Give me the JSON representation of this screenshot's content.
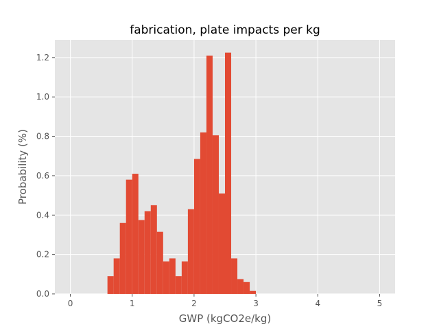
{
  "chart_data": {
    "type": "bar",
    "title": "fabrication, plate impacts per kg",
    "xlabel": "GWP (kgCO2e/kg)",
    "ylabel": "Probability (%)",
    "xlim": [
      -0.25,
      5.25
    ],
    "ylim": [
      0.0,
      1.29
    ],
    "xticks": [
      0,
      1,
      2,
      3,
      4,
      5
    ],
    "xtick_labels": [
      "0",
      "1",
      "2",
      "3",
      "4",
      "5"
    ],
    "yticks": [
      0.0,
      0.2,
      0.4,
      0.6,
      0.8,
      1.0,
      1.2
    ],
    "ytick_labels": [
      "0.0",
      "0.2",
      "0.4",
      "0.6",
      "0.8",
      "1.0",
      "1.2"
    ],
    "grid": true,
    "bin_width": 0.1,
    "bins": [
      {
        "x0": 0.6,
        "x1": 0.7,
        "value": 0.09
      },
      {
        "x0": 0.7,
        "x1": 0.8,
        "value": 0.18
      },
      {
        "x0": 0.8,
        "x1": 0.9,
        "value": 0.36
      },
      {
        "x0": 0.9,
        "x1": 1.0,
        "value": 0.58
      },
      {
        "x0": 1.0,
        "x1": 1.1,
        "value": 0.61
      },
      {
        "x0": 1.1,
        "x1": 1.2,
        "value": 0.375
      },
      {
        "x0": 1.2,
        "x1": 1.3,
        "value": 0.42
      },
      {
        "x0": 1.3,
        "x1": 1.4,
        "value": 0.45
      },
      {
        "x0": 1.4,
        "x1": 1.5,
        "value": 0.315
      },
      {
        "x0": 1.5,
        "x1": 1.6,
        "value": 0.165
      },
      {
        "x0": 1.6,
        "x1": 1.7,
        "value": 0.18
      },
      {
        "x0": 1.7,
        "x1": 1.8,
        "value": 0.09
      },
      {
        "x0": 1.8,
        "x1": 1.9,
        "value": 0.165
      },
      {
        "x0": 1.9,
        "x1": 2.0,
        "value": 0.43
      },
      {
        "x0": 2.0,
        "x1": 2.1,
        "value": 0.685
      },
      {
        "x0": 2.1,
        "x1": 2.2,
        "value": 0.82
      },
      {
        "x0": 2.2,
        "x1": 2.3,
        "value": 1.21
      },
      {
        "x0": 2.3,
        "x1": 2.4,
        "value": 0.805
      },
      {
        "x0": 2.4,
        "x1": 2.5,
        "value": 0.51
      },
      {
        "x0": 2.5,
        "x1": 2.6,
        "value": 1.225
      },
      {
        "x0": 2.6,
        "x1": 2.7,
        "value": 0.18
      },
      {
        "x0": 2.7,
        "x1": 2.8,
        "value": 0.075
      },
      {
        "x0": 2.8,
        "x1": 2.9,
        "value": 0.06
      },
      {
        "x0": 2.9,
        "x1": 3.0,
        "value": 0.015
      }
    ],
    "colors": {
      "bar": "#E24A33",
      "plot_background": "#E5E5E5",
      "grid": "#FFFFFF",
      "text": "#555555"
    }
  }
}
